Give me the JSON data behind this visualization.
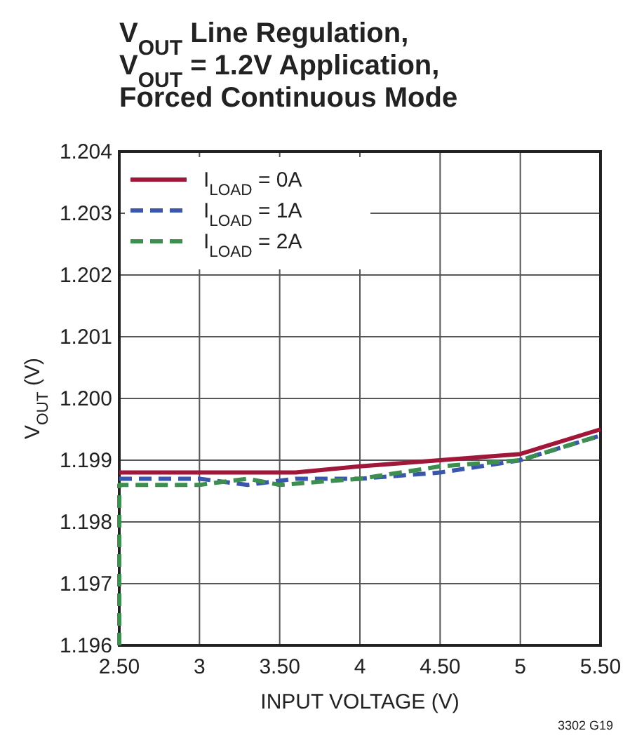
{
  "chart_data": {
    "type": "line",
    "title": "V$_{OUT}$ Line Regulation,\nV$_{OUT}$ = 1.2V Application,\nForced Continuous Mode",
    "xlabel": "INPUT VOLTAGE (V)",
    "ylabel": "V$_{OUT}$ (V)",
    "xlim": [
      2.5,
      5.5
    ],
    "xticks": [
      {
        "value": 2.5,
        "label": "2.50"
      },
      3,
      {
        "value": 3.5,
        "label": "3.50"
      },
      4,
      {
        "value": 4.5,
        "label": "4.50"
      },
      5,
      {
        "value": 5.5,
        "label": "5.50"
      }
    ],
    "ylim": [
      1.196,
      1.204
    ],
    "yticks": [
      {
        "value": 1.196,
        "label": "1.196"
      },
      {
        "value": 1.197,
        "label": "1.197"
      },
      {
        "value": 1.198,
        "label": "1.198"
      },
      {
        "value": 1.199,
        "label": "1.199"
      },
      {
        "value": 1.2,
        "label": "1.200"
      },
      {
        "value": 1.201,
        "label": "1.201"
      },
      {
        "value": 1.202,
        "label": "1.202"
      },
      {
        "value": 1.203,
        "label": "1.203"
      },
      {
        "value": 1.204,
        "label": "1.204"
      }
    ],
    "grid": true,
    "legend": "top left",
    "series": [
      {
        "name": "I$_{LOAD}$ = 0A",
        "color": "#a0173a",
        "line_style": "solid",
        "x": [
          2.5,
          3,
          3.6,
          4,
          4.5,
          5,
          5.5
        ],
        "values": [
          1.1988,
          1.1988,
          1.1988,
          1.1989,
          1.199,
          1.1991,
          1.1995
        ]
      },
      {
        "name": "I$_{LOAD}$ = 1A",
        "color": "#3a57ad",
        "line_style": "dashed",
        "x": [
          2.5,
          3,
          3.3,
          3.6,
          4,
          4.5,
          5,
          5.5
        ],
        "values": [
          1.1987,
          1.1987,
          1.1986,
          1.1987,
          1.1987,
          1.1988,
          1.199,
          1.1994
        ]
      },
      {
        "name": "I$_{LOAD}$ = 2A",
        "color": "#3d8f4f",
        "line_style": "dashed",
        "x": [
          2.5,
          2.5,
          3,
          3.3,
          3.5,
          4,
          4.5,
          5,
          5.5
        ],
        "values": [
          1.196,
          1.1986,
          1.1986,
          1.1987,
          1.1986,
          1.1987,
          1.1989,
          1.199,
          1.1994
        ]
      }
    ],
    "annotations": [
      "3302 G19"
    ]
  }
}
